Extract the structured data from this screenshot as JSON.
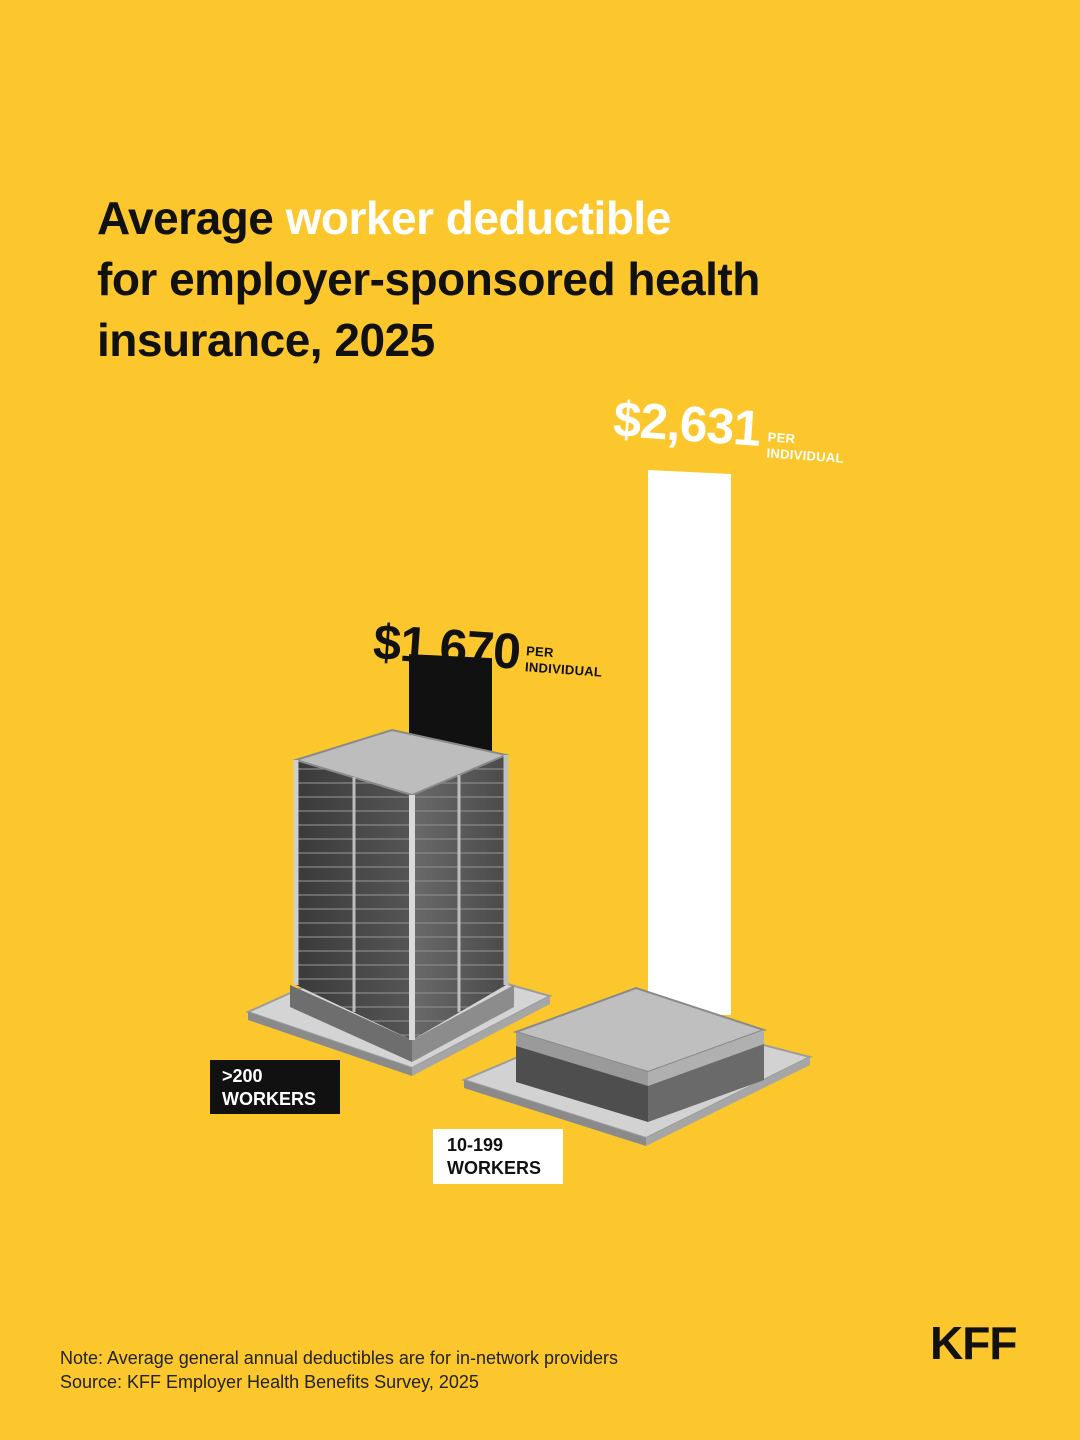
{
  "title": {
    "part1": "Average ",
    "highlight": "worker deductible",
    "line2": "for employer-sponsored health",
    "line3": "insurance, 2025"
  },
  "chart_data": {
    "type": "bar",
    "categories": [
      ">200 WORKERS",
      "10-199 WORKERS"
    ],
    "category_lines": [
      [
        ">200",
        "WORKERS"
      ],
      [
        "10-199",
        "WORKERS"
      ]
    ],
    "values": [
      1670,
      2631
    ],
    "value_labels": [
      "$1,670",
      "$2,631"
    ],
    "unit_lines": [
      "PER",
      "INDIVIDUAL"
    ],
    "bar_colors": [
      "#111111",
      "#FFFFFF"
    ],
    "label_colors": [
      "#111111",
      "#FFFFFF"
    ],
    "ylim": [
      0,
      2631
    ]
  },
  "footer": {
    "note": "Note:  Average general annual deductibles are for in-network providers",
    "source": "Source:  KFF Employer Health Benefits Survey, 2025"
  },
  "logo": "KFF",
  "colors": {
    "background": "#FCC72C",
    "highlight": "#FFFFFF",
    "text": "#111111"
  }
}
